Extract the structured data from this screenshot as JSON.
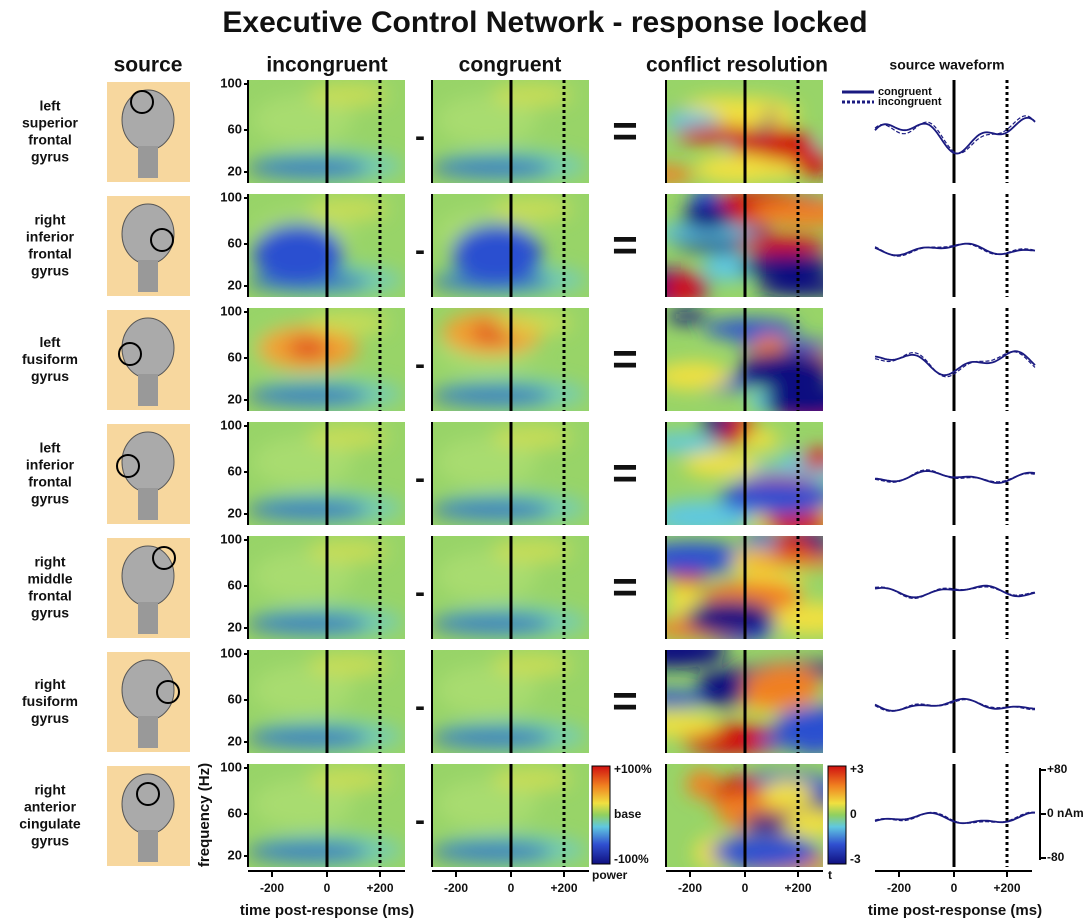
{
  "title": "Executive Control Network - response locked",
  "column_headers": {
    "source": "source",
    "incongruent": "incongruent",
    "congruent": "congruent",
    "conflict": "conflict resolution",
    "waveform": "source waveform"
  },
  "regions": [
    [
      "left",
      "superior",
      "frontal",
      "gyrus"
    ],
    [
      "right",
      "inferior",
      "frontal",
      "gyrus"
    ],
    [
      "left",
      "fusiform",
      "gyrus"
    ],
    [
      "left",
      "inferior",
      "frontal",
      "gyrus"
    ],
    [
      "right",
      "middle",
      "frontal",
      "gyrus"
    ],
    [
      "right",
      "fusiform",
      "gyrus"
    ],
    [
      "right",
      "anterior",
      "cingulate",
      "gyrus"
    ]
  ],
  "operators": {
    "minus": "-",
    "equals": "="
  },
  "frequency_ticks": [
    "100",
    "60",
    "20"
  ],
  "time_ticks": [
    "-200",
    "0",
    "+200"
  ],
  "axis_labels": {
    "frequency": "frequency (Hz)",
    "time": "time post-response (ms)"
  },
  "power_scale": {
    "top": "+100%",
    "middle": "base",
    "bottom": "-100%",
    "name": "power"
  },
  "t_scale": {
    "top": "+3",
    "middle": "0",
    "bottom": "-3",
    "name": "t"
  },
  "amplitude_scale": {
    "top": "+80",
    "middle": "0 nAm",
    "bottom": "-80"
  },
  "legend": [
    "congruent",
    "incongruent"
  ]
}
